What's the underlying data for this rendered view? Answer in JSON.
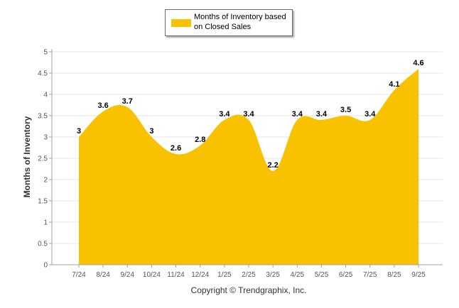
{
  "legend": {
    "label": "Months of Inventory based on Closed Sales"
  },
  "footer": {
    "copyright": "Copyright © Trendgraphix, Inc."
  },
  "colors": {
    "area_fill": "#f9c200",
    "grid": "#e6e6e6",
    "axis": "#a0a0a0"
  },
  "chart_data": {
    "type": "area",
    "title": "",
    "xlabel": "",
    "ylabel": "Months of Inventory",
    "categories": [
      "7/24",
      "8/24",
      "9/24",
      "10/24",
      "11/24",
      "12/24",
      "1/25",
      "2/25",
      "3/25",
      "4/25",
      "5/25",
      "6/25",
      "7/25",
      "8/25",
      "9/25"
    ],
    "series": [
      {
        "name": "Months of Inventory based on Closed Sales",
        "values": [
          3,
          3.6,
          3.7,
          3,
          2.6,
          2.8,
          3.4,
          3.4,
          2.2,
          3.4,
          3.4,
          3.5,
          3.4,
          4.1,
          4.6
        ]
      }
    ],
    "ylim": [
      0,
      5
    ],
    "yticks": [
      0,
      0.5,
      1,
      1.5,
      2,
      2.5,
      3,
      3.5,
      4,
      4.5,
      5
    ],
    "grid": true,
    "legend_position": "top-center",
    "smooth": true,
    "data_labels": true
  }
}
